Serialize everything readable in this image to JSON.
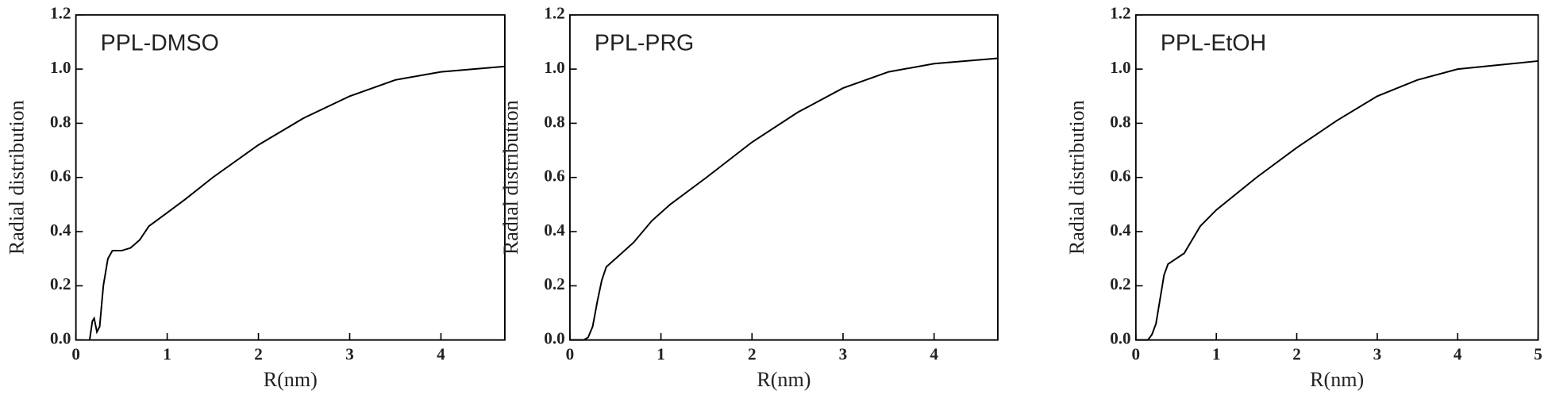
{
  "chart_data": [
    {
      "type": "line",
      "annotation": "PPL-DMSO",
      "xlabel": "R(nm)",
      "ylabel": "Radial distribution",
      "xlim": [
        0,
        4.7
      ],
      "ylim": [
        0,
        1.2
      ],
      "xticks": [
        0,
        1,
        2,
        3,
        4
      ],
      "yticks": [
        {
          "value": 0,
          "label": "0.0"
        },
        {
          "value": 0.2,
          "label": "0.2"
        },
        {
          "value": 0.4,
          "label": "0.4"
        },
        {
          "value": 0.6,
          "label": "0.6"
        },
        {
          "value": 0.8,
          "label": "0.8"
        },
        {
          "value": 1.0,
          "label": "1.0"
        },
        {
          "value": 1.2,
          "label": "1.2"
        }
      ],
      "color": "#000000",
      "x": [
        0.15,
        0.18,
        0.2,
        0.23,
        0.26,
        0.3,
        0.35,
        0.4,
        0.5,
        0.6,
        0.7,
        0.8,
        1.0,
        1.2,
        1.5,
        2,
        2.5,
        3,
        3.5,
        4,
        4.7
      ],
      "values": [
        0,
        0.07,
        0.08,
        0.03,
        0.05,
        0.2,
        0.3,
        0.33,
        0.33,
        0.34,
        0.37,
        0.42,
        0.47,
        0.52,
        0.6,
        0.72,
        0.82,
        0.9,
        0.96,
        0.99,
        1.01
      ]
    },
    {
      "type": "line",
      "annotation": "PPL-PRG",
      "xlabel": "R(nm)",
      "ylabel": "Radial distribution",
      "xlim": [
        0,
        4.7
      ],
      "ylim": [
        0,
        1.2
      ],
      "xticks": [
        0,
        1,
        2,
        3,
        4
      ],
      "yticks": [
        {
          "value": 0,
          "label": "0.0"
        },
        {
          "value": 0.2,
          "label": "0.2"
        },
        {
          "value": 0.4,
          "label": "0.4"
        },
        {
          "value": 0.6,
          "label": "0.6"
        },
        {
          "value": 0.8,
          "label": "0.8"
        },
        {
          "value": 1.0,
          "label": "1.0"
        },
        {
          "value": 1.2,
          "label": "1.2"
        }
      ],
      "color": "#000000",
      "x": [
        0,
        0.15,
        0.2,
        0.25,
        0.3,
        0.35,
        0.4,
        0.5,
        0.7,
        0.9,
        1.1,
        1.5,
        2,
        2.5,
        3,
        3.5,
        4,
        4.7
      ],
      "values": [
        0,
        0,
        0.01,
        0.05,
        0.14,
        0.22,
        0.27,
        0.3,
        0.36,
        0.44,
        0.5,
        0.6,
        0.73,
        0.84,
        0.93,
        0.99,
        1.02,
        1.04
      ]
    },
    {
      "type": "line",
      "annotation": "PPL-EtOH",
      "xlabel": "R(nm)",
      "ylabel": "Radial distribution",
      "xlim": [
        0,
        5
      ],
      "ylim": [
        0,
        1.2
      ],
      "xticks": [
        0,
        1,
        2,
        3,
        4,
        5
      ],
      "yticks": [
        {
          "value": 0,
          "label": "0.0"
        },
        {
          "value": 0.2,
          "label": "0.2"
        },
        {
          "value": 0.4,
          "label": "0.4"
        },
        {
          "value": 0.6,
          "label": "0.6"
        },
        {
          "value": 0.8,
          "label": "0.8"
        },
        {
          "value": 1.0,
          "label": "1.0"
        },
        {
          "value": 1.2,
          "label": "1.2"
        }
      ],
      "color": "#000000",
      "x": [
        0,
        0.15,
        0.2,
        0.25,
        0.3,
        0.35,
        0.4,
        0.5,
        0.6,
        0.7,
        0.8,
        1.0,
        1.5,
        2,
        2.5,
        3,
        3.5,
        4,
        5
      ],
      "values": [
        0,
        0,
        0.02,
        0.06,
        0.15,
        0.24,
        0.28,
        0.3,
        0.32,
        0.37,
        0.42,
        0.48,
        0.6,
        0.71,
        0.81,
        0.9,
        0.96,
        1.0,
        1.03
      ]
    }
  ]
}
